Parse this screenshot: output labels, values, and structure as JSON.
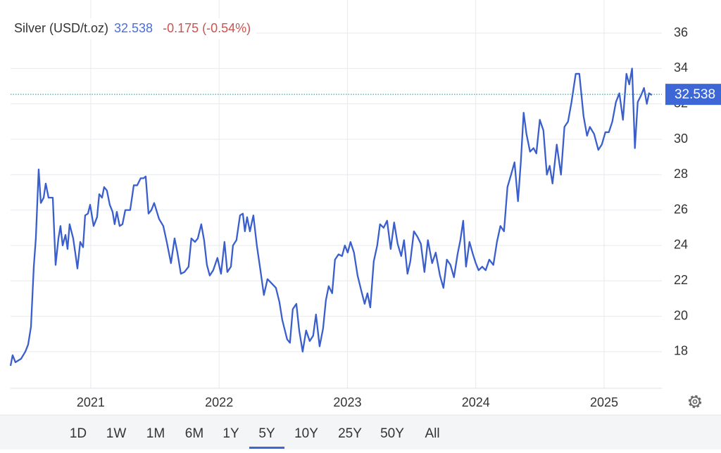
{
  "chart_data": {
    "type": "line",
    "title": "Silver (USD/t.oz)",
    "last_price": 32.538,
    "change": "-0.175 (-0.54%)",
    "color": "#3a5fcd",
    "grid": true,
    "xlim": [
      2020.375,
      2025.45
    ],
    "xticks": [
      2021,
      2022,
      2023,
      2024,
      2025
    ],
    "ylim": [
      15.93,
      37.87
    ],
    "yticks": [
      18,
      20,
      22,
      24,
      26,
      28,
      30,
      32,
      34,
      36
    ],
    "x": [
      2020.375,
      2020.391,
      2020.413,
      2020.457,
      2020.49,
      2020.512,
      2020.534,
      2020.556,
      2020.572,
      2020.594,
      2020.611,
      2020.633,
      2020.649,
      2020.671,
      2020.704,
      2020.726,
      2020.748,
      2020.764,
      2020.781,
      2020.803,
      2020.819,
      2020.835,
      2020.863,
      2020.879,
      2020.896,
      2020.918,
      2020.94,
      2020.956,
      2020.978,
      2020.995,
      2021.022,
      2021.049,
      2021.066,
      2021.088,
      2021.104,
      2021.126,
      2021.148,
      2021.17,
      2021.186,
      2021.203,
      2021.225,
      2021.247,
      2021.269,
      2021.307,
      2021.335,
      2021.362,
      2021.389,
      2021.411,
      2021.428,
      2021.45,
      2021.472,
      2021.494,
      2021.532,
      2021.565,
      2021.592,
      2021.625,
      2021.653,
      2021.675,
      2021.702,
      2021.73,
      2021.762,
      2021.784,
      2021.812,
      2021.834,
      2021.861,
      2021.883,
      2021.905,
      2021.927,
      2021.954,
      2021.987,
      2022.015,
      2022.042,
      2022.064,
      2022.092,
      2022.108,
      2022.135,
      2022.163,
      2022.185,
      2022.201,
      2022.218,
      2022.24,
      2022.267,
      2022.294,
      2022.322,
      2022.349,
      2022.377,
      2022.404,
      2022.443,
      2022.47,
      2022.492,
      2022.53,
      2022.552,
      2022.574,
      2022.602,
      2022.624,
      2022.651,
      2022.678,
      2022.706,
      2022.733,
      2022.755,
      2022.783,
      2022.81,
      2022.832,
      2022.854,
      2022.881,
      2022.903,
      2022.931,
      2022.958,
      2022.98,
      2023.002,
      2023.024,
      2023.051,
      2023.079,
      2023.106,
      2023.134,
      2023.156,
      2023.178,
      2023.205,
      2023.232,
      2023.254,
      2023.282,
      2023.309,
      2023.337,
      2023.364,
      2023.391,
      2023.419,
      2023.441,
      2023.468,
      2023.49,
      2023.518,
      2023.545,
      2023.572,
      2023.6,
      2023.627,
      2023.66,
      2023.688,
      2023.721,
      2023.748,
      2023.775,
      2023.803,
      2023.83,
      2023.858,
      2023.88,
      2023.902,
      2023.924,
      2023.951,
      2023.978,
      2024.0,
      2024.022,
      2024.05,
      2024.077,
      2024.105,
      2024.137,
      2024.165,
      2024.192,
      2024.22,
      2024.247,
      2024.275,
      2024.302,
      2024.329,
      2024.351,
      2024.373,
      2024.395,
      2024.423,
      2024.45,
      2024.472,
      2024.499,
      2024.527,
      2024.554,
      2024.576,
      2024.598,
      2024.631,
      2024.664,
      2024.691,
      2024.719,
      2024.746,
      2024.779,
      2024.807,
      2024.84,
      2024.867,
      2024.889,
      2024.922,
      2024.955,
      2024.982,
      2025.01,
      2025.037,
      2025.064,
      2025.092,
      2025.119,
      2025.147,
      2025.174,
      2025.196,
      2025.218,
      2025.24,
      2025.262,
      2025.289,
      2025.311,
      2025.333,
      2025.35,
      2025.372
    ],
    "values": [
      17.2,
      17.8,
      17.4,
      17.6,
      18.0,
      18.4,
      19.4,
      22.8,
      24.4,
      28.3,
      26.4,
      26.7,
      27.5,
      26.7,
      26.7,
      22.9,
      24.4,
      25.1,
      24.0,
      24.6,
      23.8,
      25.2,
      24.4,
      23.6,
      22.7,
      24.2,
      23.9,
      25.7,
      25.8,
      26.3,
      25.1,
      25.6,
      26.9,
      26.7,
      27.3,
      27.1,
      26.3,
      25.9,
      25.2,
      25.9,
      25.1,
      25.2,
      26.0,
      26.0,
      27.4,
      27.4,
      27.8,
      27.8,
      27.9,
      25.8,
      26.0,
      26.4,
      25.5,
      25.1,
      24.2,
      23.0,
      24.4,
      23.6,
      22.4,
      22.5,
      22.8,
      24.4,
      24.2,
      24.4,
      25.2,
      24.3,
      22.9,
      22.3,
      22.6,
      23.3,
      22.4,
      24.2,
      22.5,
      22.8,
      24.0,
      24.3,
      25.7,
      25.8,
      24.8,
      25.6,
      24.8,
      25.7,
      24.0,
      22.6,
      21.2,
      22.1,
      21.9,
      21.6,
      20.8,
      19.8,
      18.7,
      18.5,
      20.4,
      20.7,
      19.2,
      18.0,
      19.2,
      18.6,
      18.9,
      20.1,
      18.3,
      19.3,
      20.9,
      21.7,
      21.3,
      23.2,
      23.5,
      23.4,
      24.0,
      23.6,
      24.2,
      23.6,
      22.3,
      21.5,
      20.7,
      21.3,
      20.5,
      23.1,
      24.0,
      25.2,
      25.0,
      25.4,
      23.8,
      25.3,
      24.1,
      23.4,
      24.3,
      22.4,
      23.1,
      24.8,
      24.5,
      24.1,
      22.5,
      24.3,
      23.0,
      23.6,
      22.3,
      21.6,
      23.2,
      22.9,
      22.2,
      23.5,
      24.3,
      25.4,
      22.8,
      24.2,
      23.5,
      23.0,
      22.6,
      22.8,
      22.6,
      23.2,
      22.9,
      24.2,
      25.1,
      24.8,
      27.3,
      28.0,
      28.7,
      26.5,
      28.7,
      31.5,
      30.3,
      29.3,
      29.5,
      29.2,
      31.1,
      30.5,
      28.0,
      28.5,
      27.5,
      29.7,
      28.0,
      30.7,
      31.0,
      32.1,
      33.7,
      33.7,
      31.3,
      30.2,
      30.7,
      30.3,
      29.4,
      29.7,
      30.4,
      30.4,
      31.0,
      32.1,
      32.6,
      31.1,
      33.7,
      33.1,
      34.0,
      29.5,
      32.1,
      32.5,
      32.9,
      32.0,
      32.6,
      32.5
    ]
  },
  "range_selector": {
    "options": [
      "1D",
      "1W",
      "1M",
      "6M",
      "1Y",
      "5Y",
      "10Y",
      "25Y",
      "50Y",
      "All"
    ],
    "selected": 5
  }
}
